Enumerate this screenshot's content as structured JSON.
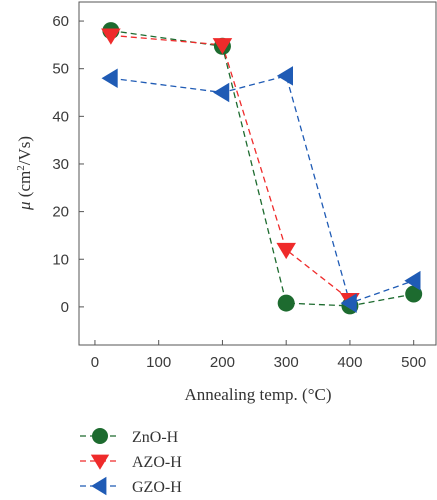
{
  "chart_data": {
    "type": "line",
    "xlabel": "Annealing temp. (°C)",
    "ylabel": {
      "symbol": "μ",
      "unit_open": " (cm",
      "superscript": "2",
      "unit_close": "/Vs)"
    },
    "xlim": [
      -25,
      535
    ],
    "ylim": [
      -8,
      64
    ],
    "xticks": [
      0,
      100,
      200,
      300,
      400,
      500
    ],
    "yticks": [
      0,
      10,
      20,
      30,
      40,
      50,
      60
    ],
    "grid": false,
    "legend_position": "bottom-left, below plot",
    "series": [
      {
        "name": "ZnO-H",
        "color": "#1d6b2f",
        "marker": "circle",
        "x": [
          25,
          200,
          300,
          400,
          500
        ],
        "y": [
          58.0,
          54.7,
          0.8,
          0.2,
          2.7
        ]
      },
      {
        "name": "AZO-H",
        "color": "#ef2b2b",
        "marker": "triangle-down",
        "x": [
          25,
          200,
          300,
          400
        ],
        "y": [
          57.0,
          55.0,
          12.0,
          1.5
        ]
      },
      {
        "name": "GZO-H",
        "color": "#1f5bb5",
        "marker": "triangle-left",
        "x": [
          25,
          200,
          300,
          400,
          500
        ],
        "y": [
          48.0,
          45.0,
          48.5,
          0.8,
          5.5
        ]
      }
    ]
  }
}
